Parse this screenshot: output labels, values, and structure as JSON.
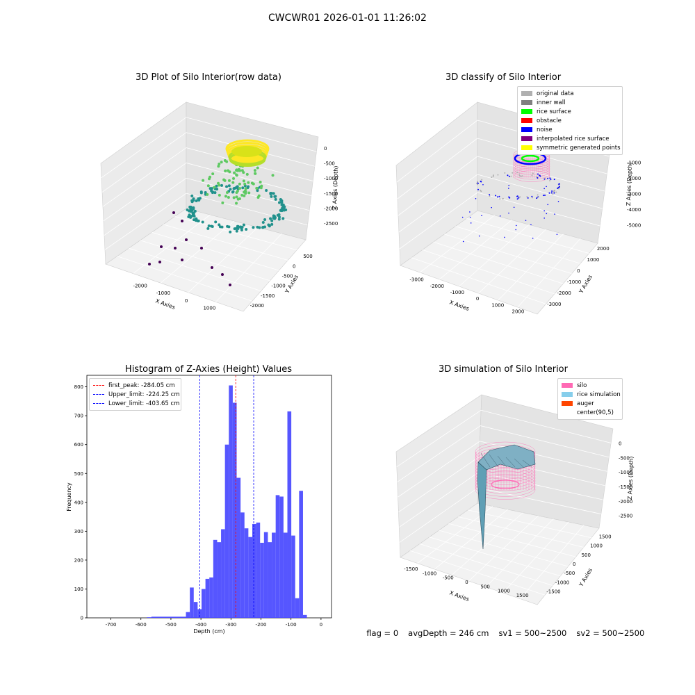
{
  "suptitle": "CWCWR01 2026-01-01 11:26:02",
  "footer": {
    "flag": "flag = 0",
    "avg": "avgDepth = 246 cm",
    "sv1": "sv1 = 500~2500",
    "sv2": "sv2 = 500~2500"
  },
  "chart_data": [
    {
      "type": "scatter",
      "subtype": "3d",
      "title": "3D Plot of Silo Interior(row data)",
      "xlabel": "X Axies",
      "ylabel": "Y Axies",
      "zlabel": "Z Axies (Depth)",
      "x_ticks": [
        "-2000",
        "-1000",
        "0",
        "1000"
      ],
      "y_ticks": [
        "500",
        "0",
        "-500",
        "-1000",
        "-1500",
        "-2000"
      ],
      "z_ticks": [
        "0",
        "-500",
        "-1000",
        "-1500",
        "-2000",
        "-2500"
      ],
      "colormap": "viridis",
      "grid": true
    },
    {
      "type": "scatter",
      "subtype": "3d",
      "title": "3D classify of Silo Interior",
      "xlabel": "X Axies",
      "ylabel": "Y Axies",
      "zlabel": "Z Axies (Depth)",
      "x_ticks": [
        "-3000",
        "-2000",
        "-1000",
        "0",
        "1000",
        "2000"
      ],
      "y_ticks": [
        "2000",
        "1000",
        "0",
        "-1000",
        "-2000",
        "-3000"
      ],
      "z_ticks": [
        "-1000",
        "-2000",
        "-3000",
        "-4000",
        "-5000"
      ],
      "legend": [
        {
          "label": "original data",
          "color": "#b0b0b0"
        },
        {
          "label": "inner wall",
          "color": "#808080"
        },
        {
          "label": "rice surface",
          "color": "#00ff00"
        },
        {
          "label": "obstacle",
          "color": "#ff0000"
        },
        {
          "label": "noise",
          "color": "#0000ff"
        },
        {
          "label": "interpolated rice surface",
          "color": "#800080"
        },
        {
          "label": "symmetric generated points",
          "color": "#ffff00"
        }
      ],
      "legend_position": "top-right",
      "grid": true
    },
    {
      "type": "bar",
      "subtype": "histogram",
      "title": "Histogram of Z-Axies (Height) Values",
      "xlabel": "Depth (cm)",
      "ylabel": "Frequency",
      "xlim": [
        -780,
        35
      ],
      "ylim": [
        0,
        840
      ],
      "x_ticks": [
        "-700",
        "-600",
        "-500",
        "-400",
        "-300",
        "-200",
        "-100",
        "0"
      ],
      "y_ticks": [
        "0",
        "100",
        "200",
        "300",
        "400",
        "500",
        "600",
        "700",
        "800"
      ],
      "bar_color": "#4d4dff",
      "bins": [
        {
          "x0": -580,
          "x1": -565,
          "v": 2
        },
        {
          "x0": -565,
          "x1": -450,
          "v": 4
        },
        {
          "x0": -450,
          "x1": -437,
          "v": 20
        },
        {
          "x0": -437,
          "x1": -424,
          "v": 105
        },
        {
          "x0": -424,
          "x1": -411,
          "v": 55
        },
        {
          "x0": -411,
          "x1": -398,
          "v": 30
        },
        {
          "x0": -398,
          "x1": -385,
          "v": 100
        },
        {
          "x0": -385,
          "x1": -372,
          "v": 135
        },
        {
          "x0": -372,
          "x1": -359,
          "v": 140
        },
        {
          "x0": -359,
          "x1": -346,
          "v": 270
        },
        {
          "x0": -346,
          "x1": -333,
          "v": 262
        },
        {
          "x0": -333,
          "x1": -320,
          "v": 307
        },
        {
          "x0": -320,
          "x1": -307,
          "v": 600
        },
        {
          "x0": -307,
          "x1": -294,
          "v": 805
        },
        {
          "x0": -294,
          "x1": -281,
          "v": 745
        },
        {
          "x0": -281,
          "x1": -268,
          "v": 485
        },
        {
          "x0": -268,
          "x1": -255,
          "v": 365
        },
        {
          "x0": -255,
          "x1": -242,
          "v": 310
        },
        {
          "x0": -242,
          "x1": -229,
          "v": 280
        },
        {
          "x0": -229,
          "x1": -216,
          "v": 325
        },
        {
          "x0": -216,
          "x1": -203,
          "v": 330
        },
        {
          "x0": -203,
          "x1": -190,
          "v": 260
        },
        {
          "x0": -190,
          "x1": -177,
          "v": 297
        },
        {
          "x0": -177,
          "x1": -164,
          "v": 262
        },
        {
          "x0": -164,
          "x1": -151,
          "v": 295
        },
        {
          "x0": -151,
          "x1": -138,
          "v": 425
        },
        {
          "x0": -138,
          "x1": -125,
          "v": 420
        },
        {
          "x0": -125,
          "x1": -112,
          "v": 295
        },
        {
          "x0": -112,
          "x1": -99,
          "v": 715
        },
        {
          "x0": -99,
          "x1": -86,
          "v": 285
        },
        {
          "x0": -86,
          "x1": -73,
          "v": 68
        },
        {
          "x0": -73,
          "x1": -60,
          "v": 440
        },
        {
          "x0": -60,
          "x1": -47,
          "v": 10
        }
      ],
      "reference_lines": [
        {
          "label": "first_peak: -284.05 cm",
          "x": -284.05,
          "color": "#ff0000"
        },
        {
          "label": "Upper_limit: -224.25 cm",
          "x": -224.25,
          "color": "#0000ff"
        },
        {
          "label": "Lower_limit: -403.65 cm",
          "x": -403.65,
          "color": "#0000ff"
        }
      ],
      "legend_position": "top-left"
    },
    {
      "type": "surface",
      "subtype": "3d",
      "title": "3D simulation of Silo Interior",
      "xlabel": "X Axies",
      "ylabel": "Y Axies",
      "zlabel": "Z Axies (Depth)",
      "x_ticks": [
        "-1500",
        "-1000",
        "-500",
        "0",
        "500",
        "1000",
        "1500"
      ],
      "y_ticks": [
        "1500",
        "1000",
        "500",
        "0",
        "-500",
        "-1000",
        "-1500"
      ],
      "z_ticks": [
        "0",
        "-500",
        "-1000",
        "-1500",
        "-2000",
        "-2500"
      ],
      "legend": [
        {
          "label": "silo",
          "color": "#ff69b4"
        },
        {
          "label": "rice simulation",
          "color": "#87ceeb"
        },
        {
          "label": "auger",
          "color": "#ff4500"
        },
        {
          "label": "center(90,5)",
          "color": "#ffffff"
        }
      ],
      "legend_position": "top-right",
      "grid": true
    }
  ]
}
